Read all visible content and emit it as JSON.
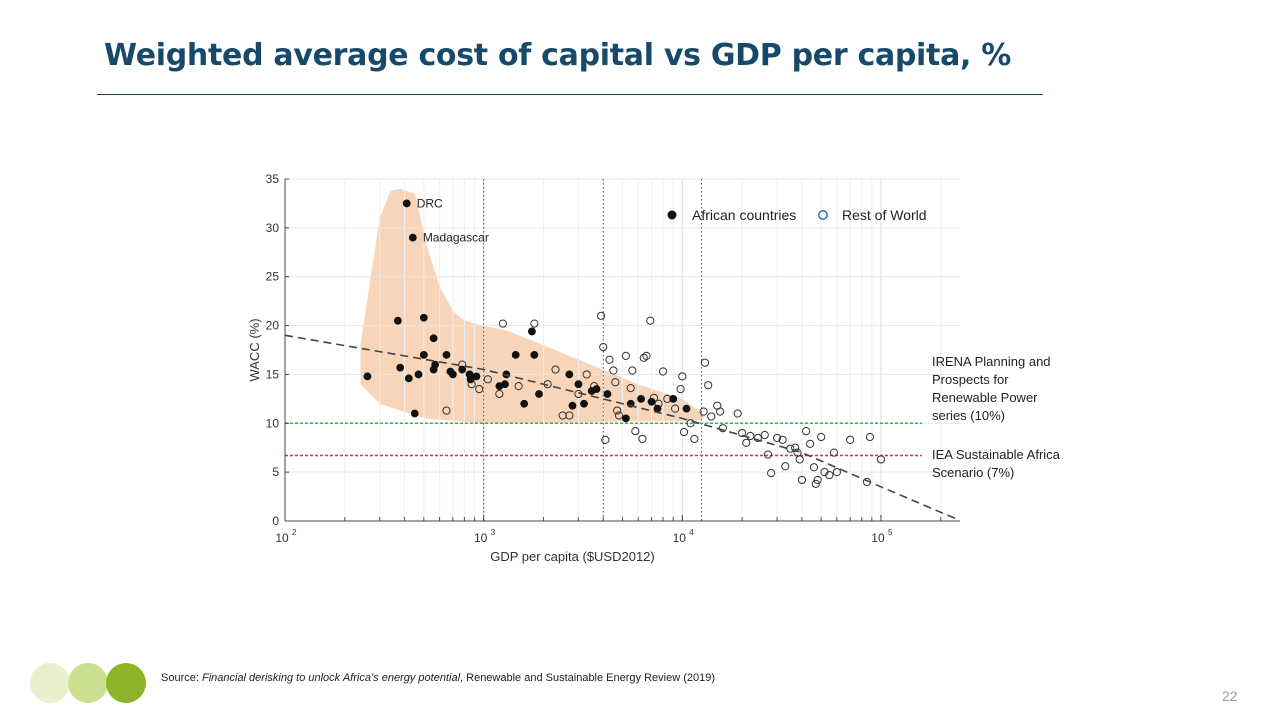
{
  "slide": {
    "title": "Weighted average cost of capital vs GDP per capita, %",
    "page_number": "22",
    "source": {
      "prefix": "Source:",
      "title": "Financial derisking to unlock Africa’s energy potential",
      "suffix": ", Renewable and Sustainable Energy Review (2019)"
    },
    "decoration_colors": [
      "#e8f0cc",
      "#cbdf91",
      "#8db52a"
    ],
    "title_color": "#17496b"
  },
  "chart_data": {
    "type": "scatter",
    "xlabel": "GDP per capita ($USD2012)",
    "ylabel": "WACC (%)",
    "x_scale": "log",
    "xlim": [
      100,
      250000
    ],
    "ylim": [
      0,
      35
    ],
    "x_tick_labels": [
      {
        "base": "10",
        "exp": "2"
      },
      {
        "base": "10",
        "exp": "3"
      },
      {
        "base": "10",
        "exp": "4"
      },
      {
        "base": "10",
        "exp": "5"
      }
    ],
    "y_ticks": [
      0,
      5,
      10,
      15,
      20,
      25,
      30,
      35
    ],
    "grid": true,
    "legend": {
      "position": "top-right",
      "african": "African countries",
      "rest": "Rest of World"
    },
    "annotations": [
      {
        "text": "DRC",
        "x": 410,
        "y": 32.5
      },
      {
        "text": "Madagascar",
        "x": 440,
        "y": 29
      }
    ],
    "reference_lines": [
      {
        "label_lines": [
          "IRENA Planning and",
          "Prospects for",
          "Renewable Power",
          "series (10%)"
        ],
        "y": 10,
        "color": "#2db84a"
      },
      {
        "label_lines": [
          "IEA Sustainable Africa",
          "Scenario (7%)"
        ],
        "y": 6.7,
        "color": "#e0303a"
      }
    ],
    "vertical_lines_x": [
      1000,
      4000,
      12500
    ],
    "trend_line": {
      "style": "dashed",
      "points": [
        [
          100,
          19
        ],
        [
          1000,
          15.5
        ],
        [
          10000,
          10.5
        ],
        [
          40000,
          7
        ],
        [
          100000,
          3.5
        ],
        [
          240000,
          0.2
        ]
      ]
    },
    "shaded_region": {
      "color": "#f8d4b8",
      "points": [
        [
          340,
          33.8
        ],
        [
          380,
          34
        ],
        [
          450,
          33.5
        ],
        [
          520,
          28
        ],
        [
          600,
          24
        ],
        [
          700,
          21.5
        ],
        [
          800,
          20.5
        ],
        [
          1000,
          20
        ],
        [
          1300,
          19.5
        ],
        [
          2000,
          18
        ],
        [
          3000,
          16.5
        ],
        [
          6000,
          14
        ],
        [
          10000,
          12.5
        ],
        [
          13000,
          10.8
        ],
        [
          12500,
          10.3
        ],
        [
          10000,
          10.2
        ],
        [
          5000,
          10.2
        ],
        [
          2000,
          10
        ],
        [
          1000,
          10
        ],
        [
          500,
          10.5
        ],
        [
          300,
          12
        ],
        [
          240,
          14
        ],
        [
          240,
          18
        ],
        [
          270,
          25
        ],
        [
          300,
          31
        ]
      ]
    },
    "series": [
      {
        "name": "African countries",
        "points": [
          [
            410,
            32.5
          ],
          [
            440,
            29
          ],
          [
            260,
            14.8
          ],
          [
            370,
            20.5
          ],
          [
            500,
            20.8
          ],
          [
            380,
            15.7
          ],
          [
            420,
            14.6
          ],
          [
            450,
            11
          ],
          [
            470,
            15
          ],
          [
            500,
            17
          ],
          [
            560,
            18.7
          ],
          [
            570,
            16
          ],
          [
            560,
            15.5
          ],
          [
            650,
            17
          ],
          [
            680,
            15.3
          ],
          [
            700,
            15
          ],
          [
            780,
            15.5
          ],
          [
            850,
            15
          ],
          [
            860,
            14.5
          ],
          [
            920,
            14.8
          ],
          [
            1200,
            13.8
          ],
          [
            1300,
            15
          ],
          [
            1280,
            14
          ],
          [
            1450,
            17
          ],
          [
            1600,
            12
          ],
          [
            1750,
            19.4
          ],
          [
            1800,
            17
          ],
          [
            1900,
            13
          ],
          [
            2700,
            15
          ],
          [
            2800,
            11.8
          ],
          [
            3000,
            14
          ],
          [
            3200,
            12
          ],
          [
            3500,
            13.3
          ],
          [
            3700,
            13.5
          ],
          [
            4200,
            13
          ],
          [
            5200,
            10.5
          ],
          [
            5500,
            12
          ],
          [
            6200,
            12.5
          ],
          [
            7000,
            12.2
          ],
          [
            7500,
            11.5
          ],
          [
            9000,
            12.5
          ],
          [
            10500,
            11.5
          ]
        ]
      },
      {
        "name": "Rest of World",
        "points": [
          [
            650,
            11.3
          ],
          [
            780,
            16
          ],
          [
            870,
            14
          ],
          [
            950,
            13.5
          ],
          [
            1050,
            14.5
          ],
          [
            1200,
            13
          ],
          [
            1250,
            20.2
          ],
          [
            1500,
            13.8
          ],
          [
            1800,
            20.2
          ],
          [
            2100,
            14
          ],
          [
            2300,
            15.5
          ],
          [
            2500,
            10.8
          ],
          [
            2700,
            10.8
          ],
          [
            3000,
            13
          ],
          [
            3300,
            15
          ],
          [
            3600,
            13.8
          ],
          [
            3900,
            21
          ],
          [
            4000,
            17.8
          ],
          [
            4100,
            8.3
          ],
          [
            4300,
            16.5
          ],
          [
            4500,
            15.4
          ],
          [
            4600,
            14.2
          ],
          [
            4700,
            11.3
          ],
          [
            4800,
            10.8
          ],
          [
            5200,
            16.9
          ],
          [
            5500,
            13.6
          ],
          [
            5600,
            15.4
          ],
          [
            5800,
            9.2
          ],
          [
            6300,
            8.4
          ],
          [
            6400,
            16.7
          ],
          [
            6600,
            16.9
          ],
          [
            6900,
            20.5
          ],
          [
            7200,
            12.6
          ],
          [
            7600,
            12
          ],
          [
            8000,
            15.3
          ],
          [
            8400,
            12.5
          ],
          [
            9200,
            11.5
          ],
          [
            9800,
            13.5
          ],
          [
            10000,
            14.8
          ],
          [
            10200,
            9.1
          ],
          [
            11000,
            10
          ],
          [
            11500,
            8.4
          ],
          [
            12800,
            11.2
          ],
          [
            13000,
            16.2
          ],
          [
            13500,
            13.9
          ],
          [
            14000,
            10.7
          ],
          [
            15000,
            11.8
          ],
          [
            15500,
            11.2
          ],
          [
            16000,
            9.5
          ],
          [
            19000,
            11
          ],
          [
            20000,
            9
          ],
          [
            21000,
            8
          ],
          [
            22000,
            8.7
          ],
          [
            24000,
            8.5
          ],
          [
            26000,
            8.8
          ],
          [
            27000,
            6.8
          ],
          [
            28000,
            4.9
          ],
          [
            30000,
            8.5
          ],
          [
            32000,
            8.3
          ],
          [
            33000,
            5.6
          ],
          [
            35000,
            7.4
          ],
          [
            37000,
            7.5
          ],
          [
            38000,
            7
          ],
          [
            39000,
            6.3
          ],
          [
            40000,
            4.2
          ],
          [
            42000,
            9.2
          ],
          [
            44000,
            7.9
          ],
          [
            46000,
            5.5
          ],
          [
            47000,
            3.8
          ],
          [
            48000,
            4.2
          ],
          [
            50000,
            8.6
          ],
          [
            52000,
            5
          ],
          [
            55000,
            4.7
          ],
          [
            58000,
            7
          ],
          [
            60000,
            5
          ],
          [
            70000,
            8.3
          ],
          [
            85000,
            4
          ],
          [
            88000,
            8.6
          ],
          [
            100000,
            6.3
          ]
        ]
      }
    ]
  }
}
